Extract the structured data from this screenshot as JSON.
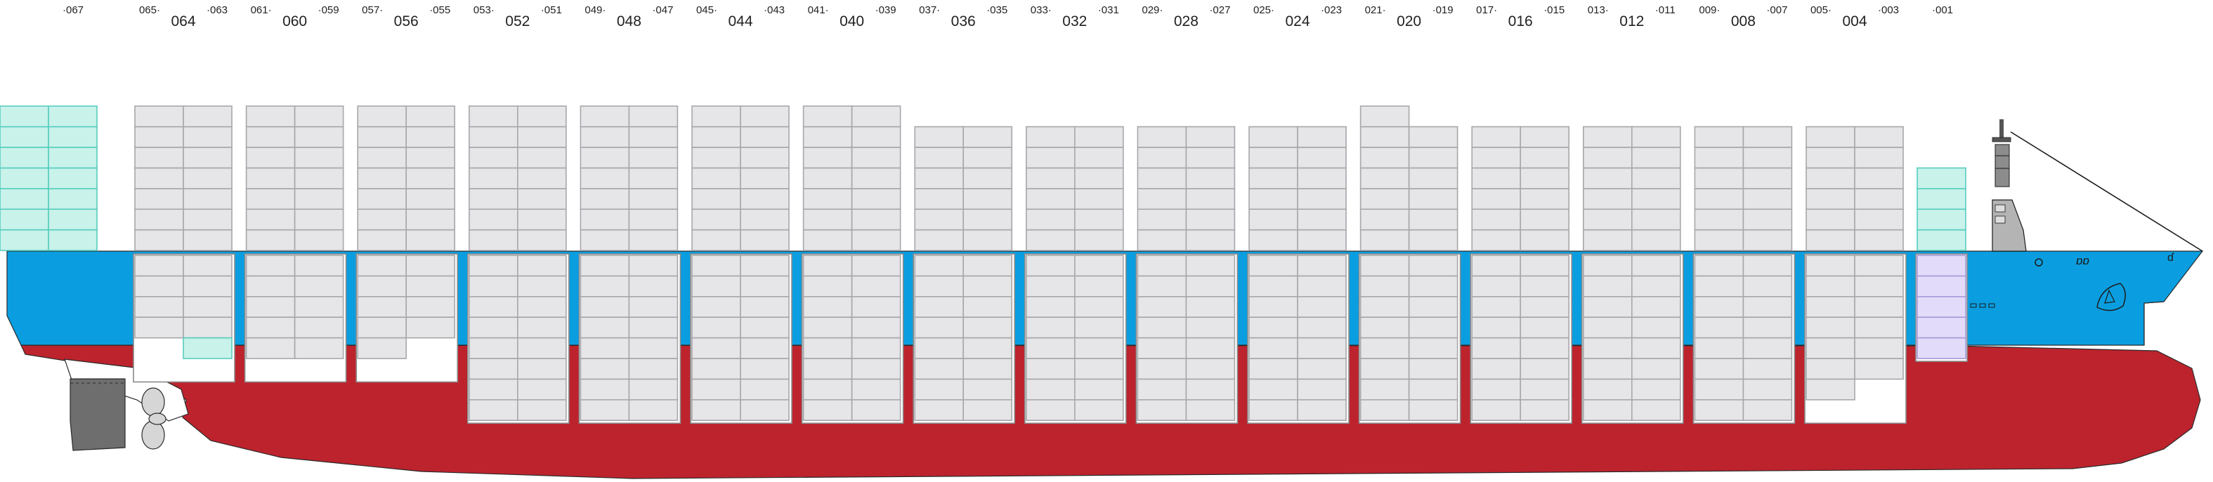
{
  "bay_labels": {
    "pairs": [
      {
        "big": "064",
        "left": "065",
        "right": "063"
      },
      {
        "big": "060",
        "left": "061",
        "right": "059"
      },
      {
        "big": "056",
        "left": "057",
        "right": "055"
      },
      {
        "big": "052",
        "left": "053",
        "right": "051"
      },
      {
        "big": "048",
        "left": "049",
        "right": "047"
      },
      {
        "big": "044",
        "left": "045",
        "right": "043"
      },
      {
        "big": "040",
        "left": "041",
        "right": "039"
      },
      {
        "big": "036",
        "left": "037",
        "right": "035"
      },
      {
        "big": "032",
        "left": "033",
        "right": "031"
      },
      {
        "big": "028",
        "left": "029",
        "right": "027"
      },
      {
        "big": "024",
        "left": "025",
        "right": "023"
      },
      {
        "big": "020",
        "left": "021",
        "right": "019"
      },
      {
        "big": "016",
        "left": "017",
        "right": "015"
      },
      {
        "big": "012",
        "left": "013",
        "right": "011"
      },
      {
        "big": "008",
        "left": "009",
        "right": "007"
      },
      {
        "big": "004",
        "left": "005",
        "right": "003"
      }
    ],
    "single_aft": "067",
    "single_fwd": "001"
  },
  "colors": {
    "hull_blue": "#0a9ee0",
    "hull_red": "#bd232d",
    "container_grey": "#e6e6e8",
    "container_reefer": "#c8f2ea",
    "container_hazard": "#e2dcfa",
    "superstructure": "#b4b4b4",
    "rudder": "#6e6e6e"
  },
  "icons": {
    "bulbous_bow": "bulbous-bow-icon",
    "propeller": "propeller-icon",
    "rudder": "rudder-icon",
    "mast": "mast-icon",
    "funnel": "funnel-icon",
    "company_logo": "star-logo-icon"
  }
}
